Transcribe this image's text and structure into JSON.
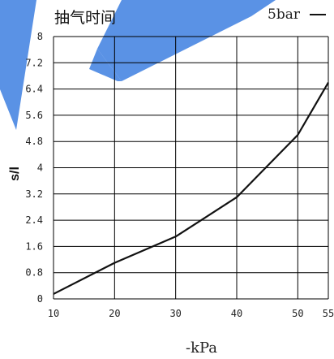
{
  "chart_data": {
    "type": "line",
    "title": "抽气时间",
    "xlabel": "-kPa",
    "ylabel": "s/l",
    "xlim": [
      10,
      55
    ],
    "ylim": [
      0,
      8
    ],
    "xticks": [
      "10",
      "20",
      "30",
      "40",
      "50",
      "55"
    ],
    "yticks": [
      "0",
      "0.8",
      "1.6",
      "2.4",
      "3.2",
      "4",
      "4.8",
      "5.6",
      "6.4",
      "7.2",
      "8"
    ],
    "grid": true,
    "legend_position": "top-right",
    "series": [
      {
        "name": "5bar",
        "x": [
          10,
          20,
          30,
          40,
          50,
          55
        ],
        "y": [
          0.15,
          1.1,
          1.9,
          3.1,
          5.0,
          6.6
        ]
      }
    ]
  },
  "colors": {
    "line": "#111111",
    "grid": "#000000",
    "watermark": "#3d7fe0"
  }
}
